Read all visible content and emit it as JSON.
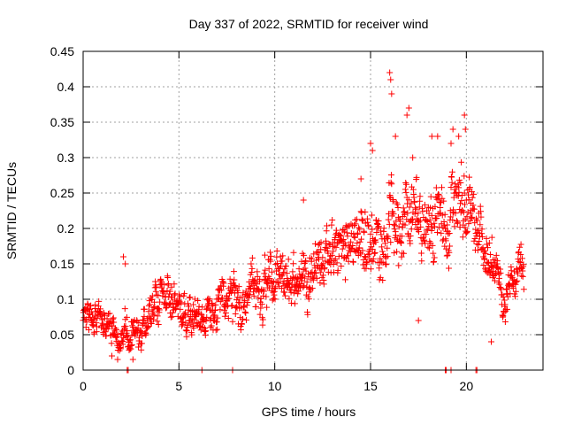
{
  "chart_data": {
    "type": "scatter",
    "title": "Day 337 of 2022, SRMTID for receiver wind",
    "xlabel": "GPS time / hours",
    "ylabel": "SRMTID / TECUs",
    "xlim": [
      0,
      24
    ],
    "ylim": [
      0,
      0.45
    ],
    "x_ticks": [
      0,
      5,
      10,
      15,
      20
    ],
    "x_tick_labels": [
      "0",
      "5",
      "10",
      "15",
      "20"
    ],
    "y_ticks": [
      0,
      0.05,
      0.1,
      0.15,
      0.2,
      0.25,
      0.3,
      0.35,
      0.4,
      0.45
    ],
    "y_tick_labels": [
      "0",
      "0.05",
      "0.1",
      "0.15",
      "0.2",
      "0.25",
      "0.3",
      "0.35",
      "0.4",
      "0.45"
    ],
    "grid": true,
    "marker": "+",
    "marker_color": "#ff0000",
    "series": [
      {
        "name": "SRMTID",
        "trend": {
          "x": [
            0.0,
            0.3,
            0.6,
            1.0,
            1.5,
            1.9,
            2.2,
            2.6,
            3.0,
            3.4,
            3.8,
            4.3,
            4.8,
            5.3,
            5.6,
            6.2,
            6.6,
            7.0,
            7.5,
            8.0,
            8.5,
            9.0,
            9.5,
            10.0,
            10.5,
            11.0,
            11.5,
            12.0,
            12.5,
            13.0,
            13.5,
            14.0,
            14.5,
            15.0,
            15.5,
            16.0,
            16.5,
            17.0,
            17.5,
            18.0,
            18.5,
            19.0,
            19.5,
            20.0,
            20.5,
            21.0,
            21.5,
            22.0,
            22.5,
            23.0
          ],
          "center": [
            0.09,
            0.07,
            0.07,
            0.06,
            0.07,
            0.04,
            0.06,
            0.05,
            0.06,
            0.08,
            0.11,
            0.1,
            0.09,
            0.09,
            0.08,
            0.07,
            0.09,
            0.08,
            0.1,
            0.1,
            0.11,
            0.12,
            0.13,
            0.12,
            0.12,
            0.13,
            0.14,
            0.15,
            0.16,
            0.16,
            0.17,
            0.18,
            0.19,
            0.19,
            0.19,
            0.21,
            0.22,
            0.21,
            0.22,
            0.22,
            0.22,
            0.2,
            0.25,
            0.24,
            0.18,
            0.17,
            0.13,
            0.11,
            0.12,
            0.13
          ],
          "spread": [
            0.035,
            0.03,
            0.03,
            0.035,
            0.035,
            0.02,
            0.04,
            0.03,
            0.03,
            0.04,
            0.04,
            0.04,
            0.035,
            0.04,
            0.04,
            0.035,
            0.04,
            0.04,
            0.04,
            0.05,
            0.05,
            0.05,
            0.05,
            0.05,
            0.05,
            0.05,
            0.05,
            0.05,
            0.05,
            0.055,
            0.06,
            0.06,
            0.065,
            0.07,
            0.07,
            0.09,
            0.08,
            0.08,
            0.07,
            0.07,
            0.07,
            0.07,
            0.08,
            0.08,
            0.06,
            0.05,
            0.04,
            0.035,
            0.04,
            0.045
          ]
        },
        "points_per_hour": 60,
        "x_end": 23.0,
        "peaks": [
          {
            "x": 16.0,
            "y": 0.42
          },
          {
            "x": 16.05,
            "y": 0.41
          },
          {
            "x": 16.1,
            "y": 0.39
          },
          {
            "x": 17.0,
            "y": 0.37
          },
          {
            "x": 16.9,
            "y": 0.36
          },
          {
            "x": 19.9,
            "y": 0.36
          },
          {
            "x": 19.95,
            "y": 0.34
          },
          {
            "x": 19.3,
            "y": 0.34
          },
          {
            "x": 15.0,
            "y": 0.32
          },
          {
            "x": 15.1,
            "y": 0.31
          },
          {
            "x": 16.3,
            "y": 0.33
          },
          {
            "x": 18.2,
            "y": 0.33
          },
          {
            "x": 18.5,
            "y": 0.33
          },
          {
            "x": 19.6,
            "y": 0.33
          },
          {
            "x": 19.2,
            "y": 0.32
          },
          {
            "x": 17.2,
            "y": 0.3
          },
          {
            "x": 11.5,
            "y": 0.24
          },
          {
            "x": 14.5,
            "y": 0.27
          },
          {
            "x": 2.1,
            "y": 0.16
          },
          {
            "x": 2.2,
            "y": 0.15
          },
          {
            "x": 1.5,
            "y": 0.02
          },
          {
            "x": 1.8,
            "y": 0.015
          },
          {
            "x": 2.6,
            "y": 0.015
          },
          {
            "x": 21.3,
            "y": 0.04
          },
          {
            "x": 17.5,
            "y": 0.07
          }
        ],
        "zero_points": [
          2.3,
          2.35,
          6.2,
          7.8,
          18.9,
          18.95,
          19.2,
          20.5,
          20.55
        ]
      }
    ]
  }
}
